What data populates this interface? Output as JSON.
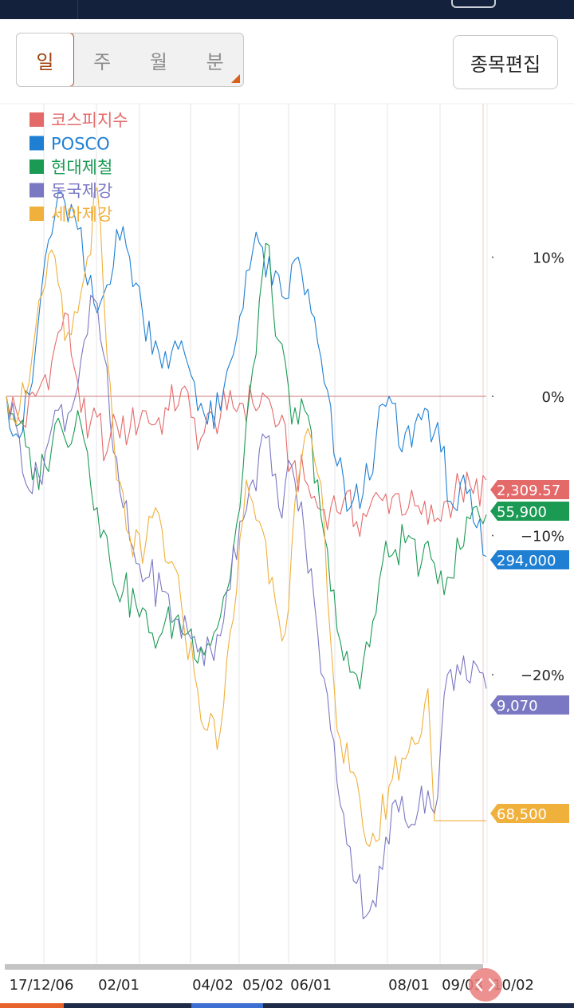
{
  "tabs": [
    {
      "label": "일",
      "active": true
    },
    {
      "label": "주",
      "active": false
    },
    {
      "label": "월",
      "active": false
    },
    {
      "label": "분",
      "active": false
    }
  ],
  "edit_button": "종목편집",
  "chart_data": {
    "type": "line",
    "y_unit": "% change",
    "ylim": [
      -39,
      20
    ],
    "y_ticks": [
      {
        "value": 10,
        "label": "10%"
      },
      {
        "value": 0,
        "label": "0%"
      },
      {
        "value": -10,
        "label": "−10%"
      },
      {
        "value": -20,
        "label": "−20%"
      }
    ],
    "x_ticks": [
      "17/12/06",
      "02/01",
      "04/02",
      "05/02",
      "06/01",
      "08/01",
      "09/03",
      "10/02"
    ],
    "grid": true,
    "legend_position": "top-left",
    "series": [
      {
        "name": "코스피지수",
        "color": "#e46a6a",
        "last_value": "2,309.57",
        "points": [
          [
            0,
            0
          ],
          [
            5,
            -2
          ],
          [
            10,
            0.5
          ],
          [
            14,
            2.5
          ],
          [
            18,
            6
          ],
          [
            22,
            1
          ],
          [
            25,
            -3
          ],
          [
            28,
            -1.5
          ],
          [
            31,
            -4
          ],
          [
            34,
            -2
          ],
          [
            38,
            -2.5
          ],
          [
            42,
            -1
          ],
          [
            46,
            -2
          ],
          [
            50,
            -1
          ],
          [
            54,
            0.5
          ],
          [
            57,
            -1.5
          ],
          [
            60,
            -3
          ],
          [
            64,
            -1.5
          ],
          [
            68,
            -1
          ],
          [
            72,
            -0.5
          ],
          [
            76,
            -0.5
          ],
          [
            80,
            0
          ],
          [
            84,
            -2
          ],
          [
            88,
            -5
          ],
          [
            92,
            -6
          ],
          [
            96,
            -8
          ],
          [
            100,
            -8
          ],
          [
            104,
            -7.5
          ],
          [
            108,
            -9
          ],
          [
            112,
            -8
          ],
          [
            116,
            -7.5
          ],
          [
            120,
            -7
          ],
          [
            124,
            -8
          ],
          [
            128,
            -8.5
          ],
          [
            132,
            -9
          ],
          [
            136,
            -7.5
          ],
          [
            140,
            -6.5
          ],
          [
            144,
            -7
          ],
          [
            148,
            -6
          ]
        ]
      },
      {
        "name": "POSCO",
        "color": "#1e7fd3",
        "last_value": "294,000",
        "points": [
          [
            0,
            0
          ],
          [
            4,
            -3
          ],
          [
            8,
            1
          ],
          [
            12,
            10
          ],
          [
            15,
            13
          ],
          [
            18,
            14
          ],
          [
            22,
            12
          ],
          [
            25,
            8
          ],
          [
            28,
            6
          ],
          [
            31,
            8
          ],
          [
            34,
            12
          ],
          [
            38,
            10
          ],
          [
            42,
            6
          ],
          [
            46,
            4
          ],
          [
            50,
            2
          ],
          [
            54,
            4
          ],
          [
            58,
            1
          ],
          [
            62,
            -2
          ],
          [
            66,
            -1
          ],
          [
            70,
            3
          ],
          [
            74,
            9
          ],
          [
            78,
            11
          ],
          [
            82,
            8
          ],
          [
            86,
            7
          ],
          [
            90,
            10
          ],
          [
            94,
            6
          ],
          [
            98,
            1
          ],
          [
            102,
            -5
          ],
          [
            106,
            -8
          ],
          [
            110,
            -7
          ],
          [
            114,
            -3
          ],
          [
            118,
            0
          ],
          [
            122,
            -4
          ],
          [
            126,
            -2
          ],
          [
            130,
            -1
          ],
          [
            134,
            -4
          ],
          [
            138,
            -8
          ],
          [
            142,
            -7
          ],
          [
            144,
            -9
          ],
          [
            148,
            -11.5
          ]
        ]
      },
      {
        "name": "현대제철",
        "color": "#1b9a54",
        "last_value": "55,900",
        "points": [
          [
            0,
            0
          ],
          [
            4,
            -2
          ],
          [
            8,
            -6
          ],
          [
            12,
            -5
          ],
          [
            15,
            -2
          ],
          [
            18,
            -3
          ],
          [
            22,
            -1
          ],
          [
            25,
            -4
          ],
          [
            28,
            -8
          ],
          [
            32,
            -12
          ],
          [
            36,
            -14
          ],
          [
            40,
            -15
          ],
          [
            44,
            -17
          ],
          [
            48,
            -17
          ],
          [
            52,
            -16
          ],
          [
            56,
            -17
          ],
          [
            60,
            -18
          ],
          [
            64,
            -17
          ],
          [
            68,
            -14
          ],
          [
            72,
            -8
          ],
          [
            76,
            2
          ],
          [
            80,
            11
          ],
          [
            84,
            4
          ],
          [
            88,
            -2
          ],
          [
            92,
            -1
          ],
          [
            96,
            -6
          ],
          [
            100,
            -14
          ],
          [
            104,
            -19
          ],
          [
            108,
            -20
          ],
          [
            112,
            -18
          ],
          [
            116,
            -12
          ],
          [
            120,
            -11
          ],
          [
            124,
            -10
          ],
          [
            128,
            -12
          ],
          [
            132,
            -12
          ],
          [
            136,
            -13
          ],
          [
            140,
            -11
          ],
          [
            144,
            -8
          ],
          [
            148,
            -8.5
          ]
        ]
      },
      {
        "name": "동국제강",
        "color": "#7a77c3",
        "last_value": "9,070",
        "points": [
          [
            0,
            0
          ],
          [
            4,
            -3
          ],
          [
            8,
            -7
          ],
          [
            12,
            -4
          ],
          [
            16,
            -1
          ],
          [
            20,
            -1
          ],
          [
            24,
            4
          ],
          [
            27,
            7
          ],
          [
            30,
            3
          ],
          [
            33,
            -4
          ],
          [
            36,
            -8
          ],
          [
            40,
            -12
          ],
          [
            44,
            -13
          ],
          [
            48,
            -14
          ],
          [
            52,
            -16
          ],
          [
            56,
            -17
          ],
          [
            60,
            -18
          ],
          [
            64,
            -19
          ],
          [
            68,
            -14
          ],
          [
            72,
            -9
          ],
          [
            76,
            -6
          ],
          [
            80,
            -3
          ],
          [
            84,
            -8
          ],
          [
            88,
            -5
          ],
          [
            92,
            -10
          ],
          [
            96,
            -17
          ],
          [
            100,
            -24
          ],
          [
            104,
            -30
          ],
          [
            108,
            -35
          ],
          [
            112,
            -37
          ],
          [
            116,
            -34
          ],
          [
            120,
            -29
          ],
          [
            124,
            -31
          ],
          [
            128,
            -28
          ],
          [
            132,
            -30
          ],
          [
            136,
            -20
          ],
          [
            140,
            -20
          ],
          [
            144,
            -19
          ],
          [
            148,
            -21
          ]
        ]
      },
      {
        "name": "세아제강",
        "color": "#f0b03c",
        "last_value": "68,500",
        "points": [
          [
            0,
            0
          ],
          [
            4,
            -1
          ],
          [
            8,
            3
          ],
          [
            12,
            8
          ],
          [
            15,
            10
          ],
          [
            18,
            4
          ],
          [
            22,
            6
          ],
          [
            25,
            10
          ],
          [
            28,
            15
          ],
          [
            31,
            3
          ],
          [
            34,
            -6
          ],
          [
            38,
            -10
          ],
          [
            42,
            -12
          ],
          [
            46,
            -8
          ],
          [
            50,
            -12
          ],
          [
            54,
            -15
          ],
          [
            58,
            -20
          ],
          [
            62,
            -24
          ],
          [
            66,
            -24
          ],
          [
            70,
            -16
          ],
          [
            74,
            -6
          ],
          [
            78,
            -9
          ],
          [
            82,
            -13
          ],
          [
            86,
            -17
          ],
          [
            90,
            -6
          ],
          [
            94,
            -3
          ],
          [
            98,
            -9
          ],
          [
            102,
            -24
          ],
          [
            106,
            -27
          ],
          [
            110,
            -31
          ],
          [
            114,
            -32
          ],
          [
            118,
            -28
          ],
          [
            122,
            -26
          ],
          [
            126,
            -25
          ],
          [
            130,
            -21
          ],
          [
            132,
            -30.5
          ],
          [
            140,
            -30.5
          ],
          [
            148,
            -30.5
          ]
        ]
      }
    ]
  }
}
